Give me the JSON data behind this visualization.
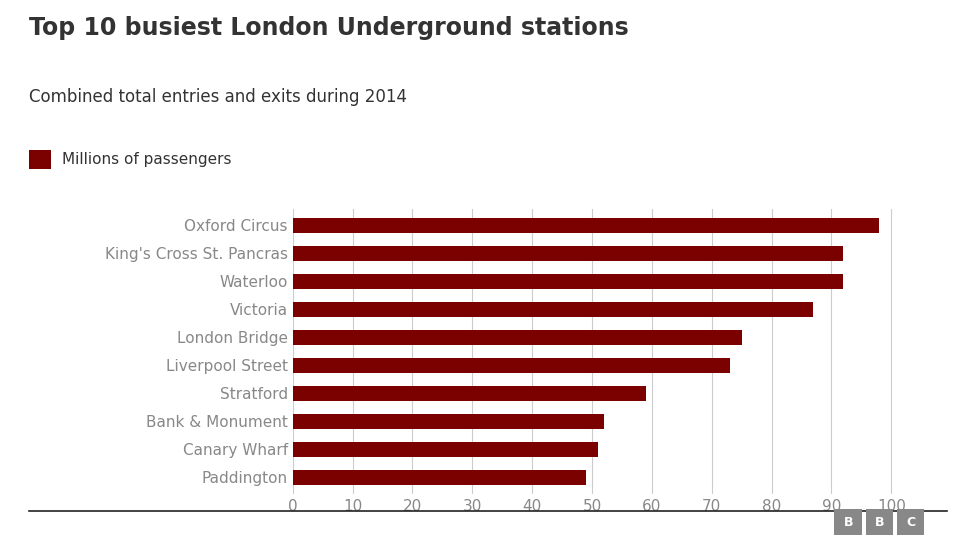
{
  "title": "Top 10 busiest London Underground stations",
  "subtitle": "Combined total entries and exits during 2014",
  "legend_label": "Millions of passengers",
  "stations": [
    "Oxford Circus",
    "King's Cross St. Pancras",
    "Waterloo",
    "Victoria",
    "London Bridge",
    "Liverpool Street",
    "Stratford",
    "Bank & Monument",
    "Canary Wharf",
    "Paddington"
  ],
  "values": [
    98,
    92,
    92,
    87,
    75,
    73,
    59,
    52,
    51,
    49
  ],
  "bar_color": "#7B0000",
  "background_color": "#ffffff",
  "xlim": [
    0,
    106
  ],
  "xticks": [
    0,
    10,
    20,
    30,
    40,
    50,
    60,
    70,
    80,
    90,
    100
  ],
  "title_fontsize": 17,
  "subtitle_fontsize": 12,
  "legend_fontsize": 11,
  "ytick_fontsize": 11,
  "xtick_fontsize": 11,
  "bar_height": 0.55,
  "grid_color": "#cccccc",
  "text_color": "#333333",
  "ytick_color": "#888888",
  "xtick_color": "#888888",
  "bbc_box_color": "#888888",
  "bbc_text_color": "#ffffff",
  "bottom_line_color": "#222222"
}
